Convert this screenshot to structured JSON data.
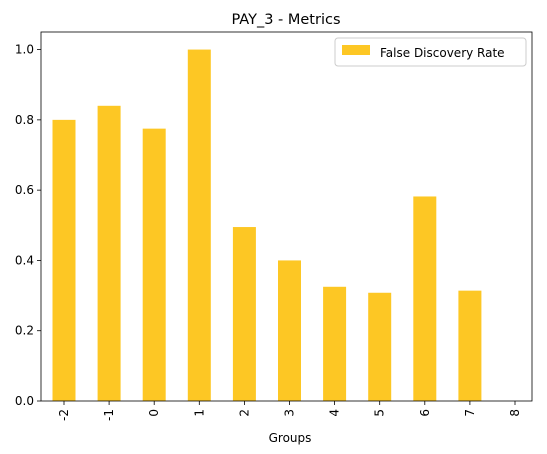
{
  "chart_data": {
    "type": "bar",
    "title": "PAY_3 - Metrics",
    "xlabel": "Groups",
    "ylabel": "",
    "categories": [
      "-2",
      "-1",
      "0",
      "1",
      "2",
      "3",
      "4",
      "5",
      "6",
      "7",
      "8"
    ],
    "series": [
      {
        "name": "False Discovery Rate",
        "color": "#fdc724",
        "values": [
          0.8,
          0.84,
          0.775,
          1.0,
          0.495,
          0.4,
          0.325,
          0.308,
          0.582,
          0.314,
          0.0
        ]
      }
    ],
    "ylim": [
      0,
      1.05
    ],
    "yticks": [
      0.0,
      0.2,
      0.4,
      0.6,
      0.8,
      1.0
    ],
    "ytick_labels": [
      "0.0",
      "0.2",
      "0.4",
      "0.6",
      "0.8",
      "1.0"
    ],
    "grid": false,
    "legend_position": "top-right"
  }
}
